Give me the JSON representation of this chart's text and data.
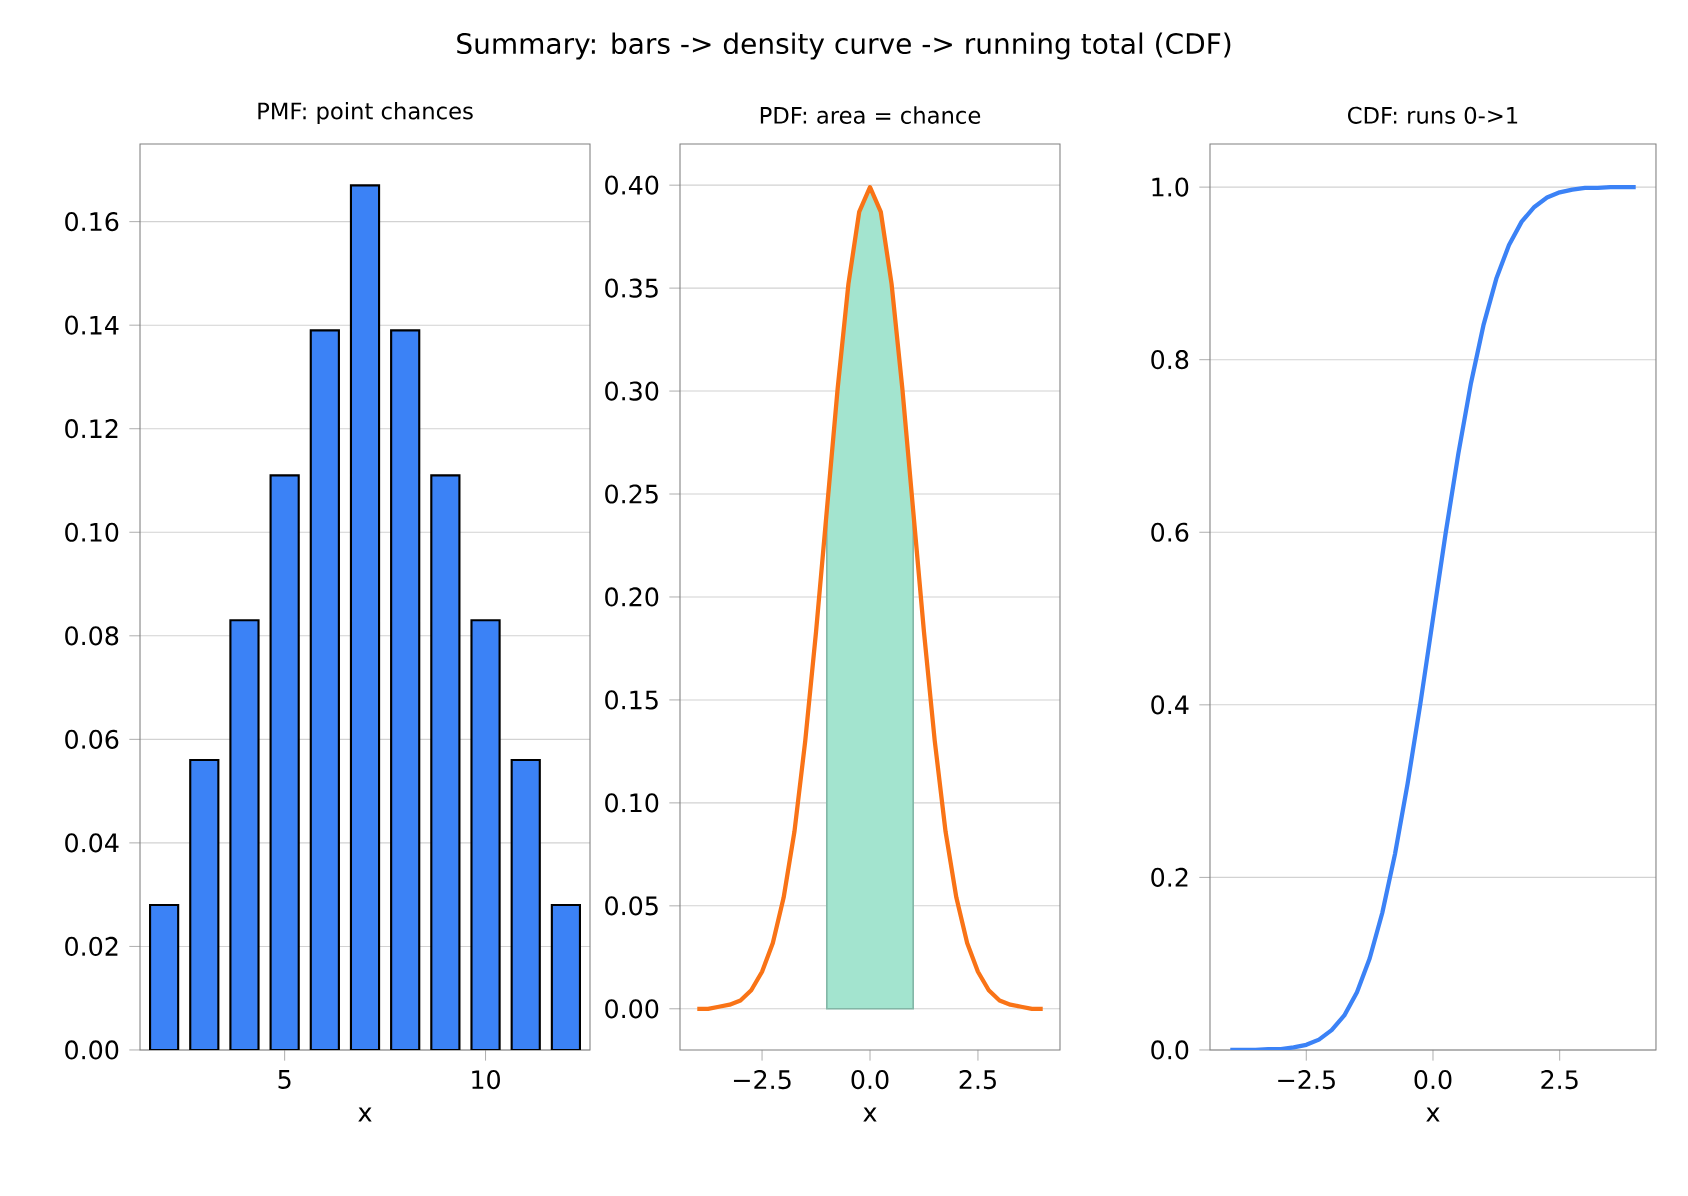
{
  "chart_data": [
    {
      "type": "bar",
      "title": "PMF: point chances",
      "xlabel": "x",
      "annotations": [
        "Summary: bars -> density curve -> running total (CDF)"
      ],
      "x": [
        2,
        3,
        4,
        5,
        6,
        7,
        8,
        9,
        10,
        11,
        12
      ],
      "values": [
        0.028,
        0.056,
        0.083,
        0.111,
        0.139,
        0.167,
        0.139,
        0.111,
        0.083,
        0.056,
        0.028
      ],
      "color": "#3b82f6",
      "xlim": [
        1.4,
        12.6
      ],
      "xticks": [
        5,
        10
      ],
      "ylim": [
        0,
        0.175
      ],
      "yticks": [
        {
          "value": 0,
          "label": "0.00"
        },
        {
          "value": 0.02,
          "label": "0.02"
        },
        {
          "value": 0.04,
          "label": "0.04"
        },
        {
          "value": 0.06,
          "label": "0.06"
        },
        {
          "value": 0.08,
          "label": "0.08"
        },
        {
          "value": 0.1,
          "label": "0.10"
        },
        {
          "value": 0.12,
          "label": "0.12"
        },
        {
          "value": 0.14,
          "label": "0.14"
        },
        {
          "value": 0.16,
          "label": "0.16"
        }
      ],
      "grid": "y"
    },
    {
      "type": "line",
      "title": "PDF: area = chance",
      "xlabel": "x",
      "series": [
        {
          "type": "area",
          "color": "#a3e4cf",
          "x": [
            -1,
            -0.75,
            -0.5,
            -0.25,
            0,
            0.25,
            0.5,
            0.75,
            1
          ],
          "values": [
            0.242,
            0.301,
            0.352,
            0.387,
            0.399,
            0.387,
            0.352,
            0.301,
            0.242
          ]
        },
        {
          "type": "line",
          "color": "#f97316",
          "x": [
            -4,
            -3.75,
            -3.5,
            -3.25,
            -3,
            -2.75,
            -2.5,
            -2.25,
            -2,
            -1.75,
            -1.5,
            -1.25,
            -1,
            -0.75,
            -0.5,
            -0.25,
            0,
            0.25,
            0.5,
            0.75,
            1,
            1.25,
            1.5,
            1.75,
            2,
            2.25,
            2.5,
            2.75,
            3,
            3.25,
            3.5,
            3.75,
            4
          ],
          "values": [
            0.0,
            0.0,
            0.001,
            0.002,
            0.004,
            0.009,
            0.018,
            0.032,
            0.054,
            0.086,
            0.13,
            0.183,
            0.242,
            0.301,
            0.352,
            0.387,
            0.399,
            0.387,
            0.352,
            0.301,
            0.242,
            0.183,
            0.13,
            0.086,
            0.054,
            0.032,
            0.018,
            0.009,
            0.004,
            0.002,
            0.001,
            0.0,
            0.0
          ]
        }
      ],
      "xlim": [
        -4.4,
        4.4
      ],
      "xticks": [
        {
          "value": -2.5,
          "label": "−2.5"
        },
        {
          "value": 0,
          "label": "0.0"
        },
        {
          "value": 2.5,
          "label": "2.5"
        }
      ],
      "ylim": [
        -0.02,
        0.42
      ],
      "yticks": [
        {
          "value": 0,
          "label": "0.00"
        },
        {
          "value": 0.05,
          "label": "0.05"
        },
        {
          "value": 0.1,
          "label": "0.10"
        },
        {
          "value": 0.15,
          "label": "0.15"
        },
        {
          "value": 0.2,
          "label": "0.20"
        },
        {
          "value": 0.25,
          "label": "0.25"
        },
        {
          "value": 0.3,
          "label": "0.30"
        },
        {
          "value": 0.35,
          "label": "0.35"
        },
        {
          "value": 0.4,
          "label": "0.40"
        }
      ],
      "grid": "y"
    },
    {
      "type": "line",
      "title": "CDF: runs 0->1",
      "xlabel": "x",
      "x": [
        -4,
        -3.75,
        -3.5,
        -3.25,
        -3,
        -2.75,
        -2.5,
        -2.25,
        -2,
        -1.75,
        -1.5,
        -1.25,
        -1,
        -0.75,
        -0.5,
        -0.25,
        0,
        0.25,
        0.5,
        0.75,
        1,
        1.25,
        1.5,
        1.75,
        2,
        2.25,
        2.5,
        2.75,
        3,
        3.25,
        3.5,
        3.75,
        4
      ],
      "values": [
        0.0,
        0.0,
        0.0,
        0.001,
        0.001,
        0.003,
        0.006,
        0.012,
        0.023,
        0.04,
        0.067,
        0.106,
        0.159,
        0.227,
        0.309,
        0.401,
        0.5,
        0.599,
        0.691,
        0.773,
        0.841,
        0.894,
        0.933,
        0.96,
        0.977,
        0.988,
        0.994,
        0.997,
        0.999,
        0.999,
        1.0,
        1.0,
        1.0
      ],
      "color": "#3b82f6",
      "xlim": [
        -4.4,
        4.4
      ],
      "xticks": [
        {
          "value": -2.5,
          "label": "−2.5"
        },
        {
          "value": 0,
          "label": "0.0"
        },
        {
          "value": 2.5,
          "label": "2.5"
        }
      ],
      "ylim": [
        0,
        1.05
      ],
      "yticks": [
        {
          "value": 0,
          "label": "0.0"
        },
        {
          "value": 0.2,
          "label": "0.2"
        },
        {
          "value": 0.4,
          "label": "0.4"
        },
        {
          "value": 0.6,
          "label": "0.6"
        },
        {
          "value": 0.8,
          "label": "0.8"
        },
        {
          "value": 1.0,
          "label": "1.0"
        }
      ],
      "grid": "y"
    }
  ]
}
